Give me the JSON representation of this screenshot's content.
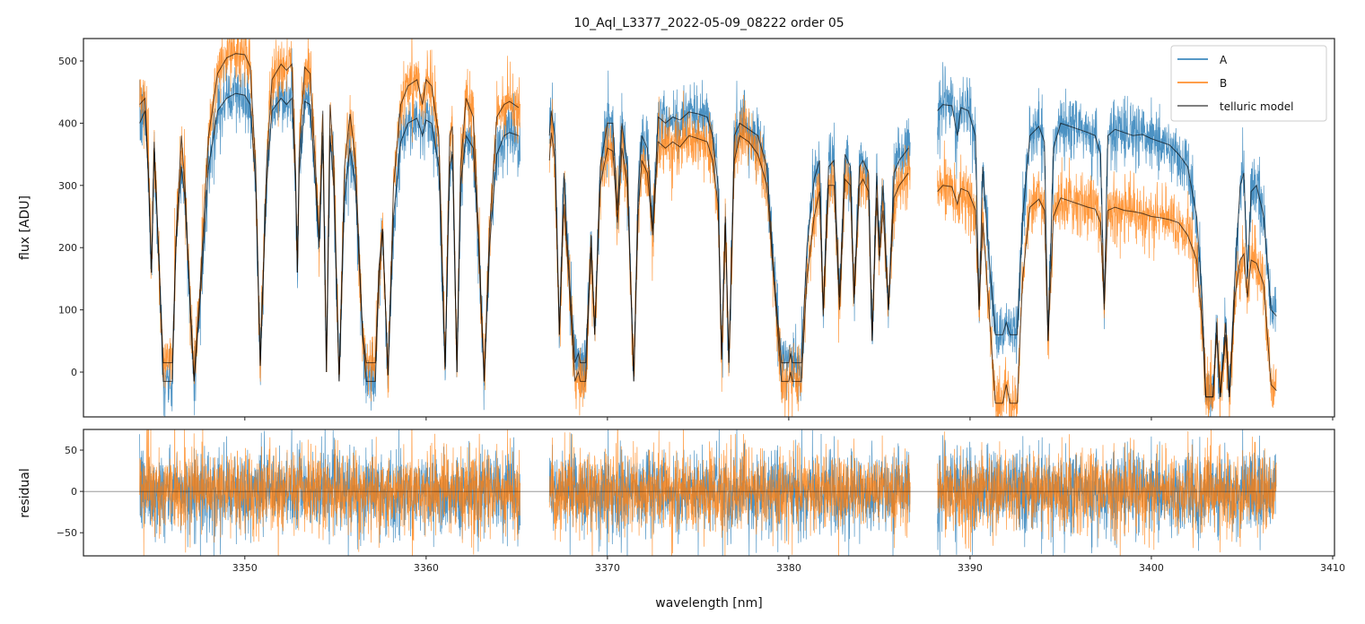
{
  "chart_data": [
    {
      "type": "line",
      "panel": "top",
      "title": "10_Aql_L3377_2022-05-09_08222  order 05",
      "xlabel": "",
      "ylabel": "flux [ADU]",
      "xlim": [
        3341.1,
        3410.1
      ],
      "ylim": [
        -72,
        536
      ],
      "xticks": [
        3350,
        3360,
        3370,
        3380,
        3390,
        3400,
        3410
      ],
      "yticks": [
        0,
        100,
        200,
        300,
        400,
        500
      ],
      "ytick_labels": [
        "0",
        "100",
        "200",
        "300",
        "400",
        "500"
      ],
      "legend_position": "top-right",
      "legend": [
        "A",
        "B",
        "telluric model"
      ],
      "colors": {
        "A": "#1f77b4",
        "B": "#ff7f0e",
        "model": "#000000"
      },
      "segments": [
        [
          3344.2,
          3365.2
        ],
        [
          3366.8,
          3386.7
        ],
        [
          3388.2,
          3406.9
        ]
      ],
      "telluric_model": {
        "x": [
          3344.2,
          3344.5,
          3344.7,
          3344.85,
          3345.0,
          3345.3,
          3345.5,
          3346.0,
          3346.2,
          3346.5,
          3346.7,
          3347.0,
          3347.2,
          3347.5,
          3348.0,
          3348.5,
          3349.0,
          3349.5,
          3350.0,
          3350.3,
          3350.6,
          3350.85,
          3351.2,
          3351.5,
          3352.0,
          3352.3,
          3352.6,
          3352.8,
          3352.9,
          3353.0,
          3353.3,
          3353.6,
          3353.9,
          3354.1,
          3354.3,
          3354.5,
          3354.7,
          3354.9,
          3355.2,
          3355.5,
          3355.8,
          3356.1,
          3356.5,
          3356.7,
          3357.2,
          3357.4,
          3357.6,
          3357.9,
          3358.2,
          3358.6,
          3359.0,
          3359.5,
          3359.8,
          3360.0,
          3360.3,
          3360.7,
          3361.05,
          3361.3,
          3361.45,
          3361.7,
          3361.9,
          3362.2,
          3362.6,
          3362.9,
          3363.2,
          3363.5,
          3363.9,
          3364.3,
          3364.6,
          3365.1,
          3366.8,
          3366.9,
          3367.1,
          3367.35,
          3367.6,
          3367.8,
          3368.2,
          3368.4,
          3368.5,
          3368.8,
          3369.1,
          3369.3,
          3369.6,
          3370.0,
          3370.3,
          3370.55,
          3370.8,
          3371.1,
          3371.45,
          3371.7,
          3371.9,
          3372.2,
          3372.5,
          3372.8,
          3373.2,
          3373.6,
          3374.0,
          3374.5,
          3375.0,
          3375.5,
          3375.8,
          3376.1,
          3376.3,
          3376.5,
          3376.7,
          3377.0,
          3377.3,
          3377.8,
          3378.3,
          3378.8,
          3379.2,
          3379.6,
          3380.0,
          3380.1,
          3380.2,
          3380.7,
          3381.0,
          3381.4,
          3381.7,
          3381.9,
          3382.2,
          3382.5,
          3382.8,
          3383.1,
          3383.4,
          3383.6,
          3383.9,
          3384.1,
          3384.4,
          3384.6,
          3384.85,
          3385.0,
          3385.2,
          3385.5,
          3385.8,
          3386.1,
          3386.6,
          3388.2,
          3388.5,
          3389.0,
          3389.3,
          3389.5,
          3389.9,
          3390.3,
          3390.5,
          3390.7,
          3391.0,
          3391.4,
          3391.8,
          3392.0,
          3392.2,
          3392.6,
          3392.9,
          3393.3,
          3393.8,
          3394.1,
          3394.3,
          3394.6,
          3395.0,
          3395.5,
          3396.0,
          3396.5,
          3396.9,
          3397.2,
          3397.4,
          3397.6,
          3398.0,
          3398.5,
          3399.0,
          3399.5,
          3400.0,
          3400.5,
          3401.0,
          3401.5,
          3402.0,
          3402.5,
          3402.8,
          3403.0,
          3403.4,
          3403.6,
          3403.8,
          3404.1,
          3404.3,
          3404.6,
          3404.9,
          3405.1,
          3405.3,
          3405.5,
          3405.8,
          3406.2,
          3406.6,
          3406.9
        ],
        "A": [
          400,
          420,
          300,
          160,
          360,
          150,
          -15,
          -15,
          200,
          330,
          280,
          100,
          -15,
          100,
          330,
          420,
          440,
          448,
          445,
          430,
          300,
          10,
          300,
          420,
          440,
          430,
          440,
          300,
          160,
          320,
          435,
          430,
          300,
          200,
          380,
          0,
          380,
          300,
          -15,
          280,
          360,
          300,
          60,
          -15,
          -15,
          150,
          230,
          -5,
          250,
          370,
          400,
          408,
          380,
          405,
          400,
          330,
          5,
          330,
          350,
          0,
          300,
          380,
          360,
          200,
          -15,
          200,
          350,
          380,
          385,
          380,
          380,
          420,
          380,
          60,
          320,
          200,
          15,
          30,
          15,
          15,
          220,
          60,
          330,
          400,
          400,
          260,
          400,
          330,
          -15,
          300,
          380,
          360,
          230,
          410,
          400,
          410,
          405,
          418,
          415,
          410,
          380,
          300,
          20,
          250,
          15,
          380,
          400,
          390,
          380,
          330,
          150,
          15,
          15,
          30,
          15,
          15,
          200,
          310,
          340,
          100,
          330,
          340,
          120,
          350,
          330,
          120,
          330,
          340,
          320,
          50,
          320,
          200,
          300,
          100,
          320,
          340,
          360,
          420,
          430,
          428,
          380,
          425,
          420,
          380,
          100,
          330,
          200,
          60,
          60,
          80,
          60,
          60,
          250,
          380,
          395,
          370,
          50,
          360,
          400,
          395,
          390,
          385,
          380,
          350,
          110,
          380,
          390,
          385,
          380,
          382,
          375,
          370,
          365,
          350,
          330,
          250,
          120,
          -40,
          -40,
          80,
          -40,
          80,
          -40,
          150,
          300,
          320,
          150,
          290,
          300,
          250,
          100,
          90
        ],
        "B": [
          430,
          440,
          310,
          160,
          370,
          150,
          15,
          15,
          210,
          380,
          300,
          100,
          -15,
          120,
          380,
          480,
          505,
          512,
          510,
          490,
          330,
          10,
          330,
          470,
          495,
          485,
          495,
          320,
          160,
          350,
          490,
          480,
          330,
          210,
          420,
          0,
          430,
          340,
          -15,
          330,
          415,
          340,
          60,
          15,
          15,
          170,
          230,
          -5,
          300,
          430,
          460,
          470,
          430,
          470,
          460,
          380,
          5,
          380,
          395,
          0,
          330,
          440,
          410,
          220,
          -15,
          230,
          410,
          430,
          435,
          425,
          340,
          385,
          345,
          60,
          270,
          180,
          -15,
          0,
          -15,
          -15,
          200,
          60,
          300,
          360,
          355,
          240,
          360,
          300,
          -15,
          260,
          340,
          320,
          220,
          370,
          360,
          370,
          362,
          380,
          375,
          370,
          340,
          270,
          20,
          240,
          15,
          340,
          380,
          370,
          350,
          300,
          140,
          -15,
          -15,
          0,
          -15,
          -15,
          150,
          250,
          290,
          90,
          300,
          300,
          100,
          310,
          300,
          110,
          300,
          310,
          290,
          50,
          280,
          180,
          260,
          100,
          280,
          300,
          320,
          290,
          300,
          298,
          270,
          295,
          290,
          260,
          100,
          240,
          120,
          -50,
          -50,
          -20,
          -50,
          -50,
          150,
          265,
          278,
          260,
          50,
          250,
          280,
          275,
          270,
          265,
          262,
          240,
          100,
          260,
          265,
          260,
          258,
          255,
          250,
          248,
          245,
          240,
          220,
          180,
          80,
          -40,
          -40,
          60,
          -40,
          60,
          -40,
          120,
          180,
          190,
          120,
          180,
          175,
          140,
          -20,
          -30
        ]
      }
    },
    {
      "type": "line",
      "panel": "bottom",
      "xlabel": "wavelength [nm]",
      "ylabel": "residual",
      "xlim": [
        3341.1,
        3410.1
      ],
      "ylim": [
        -78,
        75
      ],
      "xticks": [
        3350,
        3360,
        3370,
        3380,
        3390,
        3400,
        3410
      ],
      "xtick_labels": [
        "3350",
        "3360",
        "3370",
        "3380",
        "3390",
        "3400",
        "3410"
      ],
      "yticks": [
        -50,
        0,
        50
      ],
      "ytick_labels": [
        "−50",
        "0",
        "50"
      ],
      "residual_rms": {
        "A": 27,
        "B": 27
      },
      "reference_line": 0
    }
  ]
}
